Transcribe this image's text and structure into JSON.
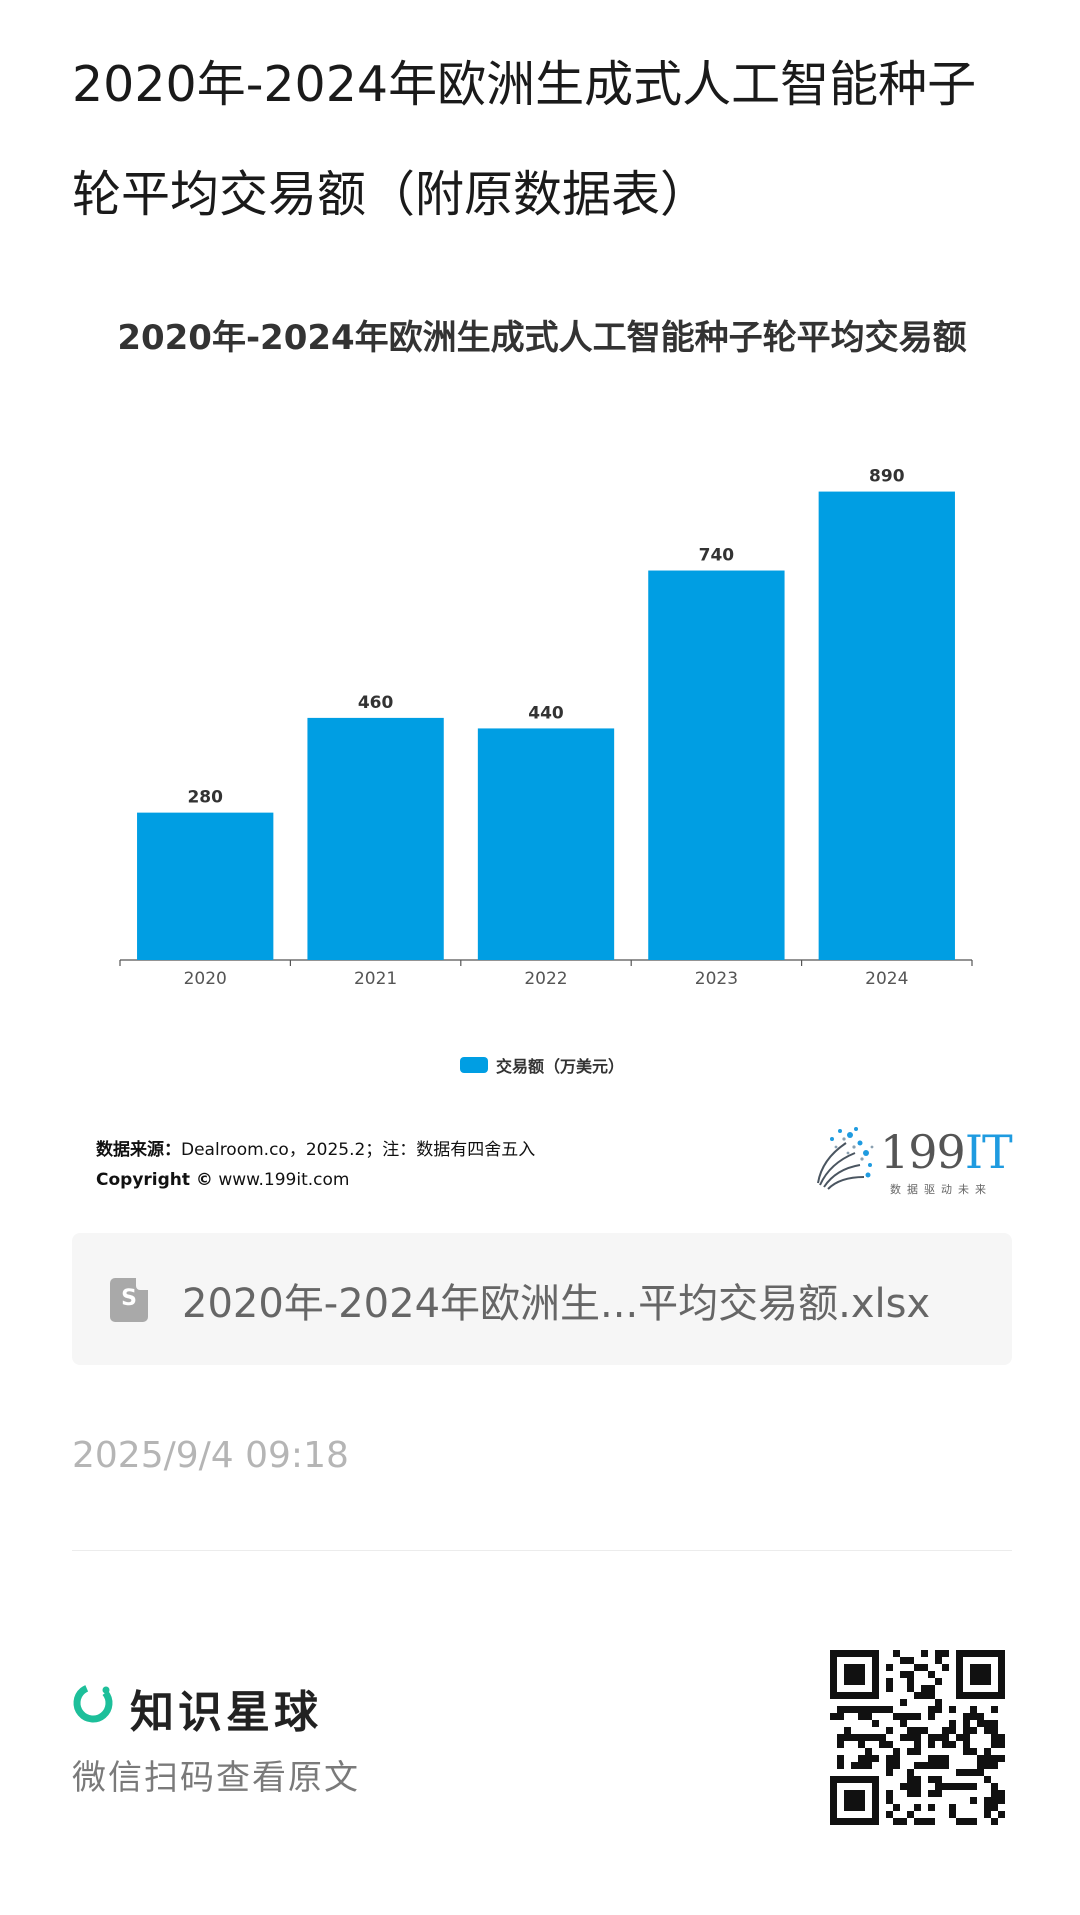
{
  "page": {
    "title": "2020年-2024年欧洲生成式人工智能种子轮平均交易额（附原数据表）"
  },
  "chart_data": {
    "type": "bar",
    "title": "2020年-2024年欧洲生成式人工智能种子轮平均交易额",
    "categories": [
      "2020",
      "2021",
      "2022",
      "2023",
      "2024"
    ],
    "series": [
      {
        "name": "交易额（万美元）",
        "values": [
          280,
          460,
          440,
          740,
          890
        ],
        "color": "#009ee3"
      }
    ],
    "ylim": [
      0,
      950
    ],
    "grid": false,
    "legend": "bottom-center",
    "data_labels": true
  },
  "source": {
    "label": "数据来源：",
    "text": "Dealroom.co，2025.2；注：数据有四舍五入",
    "copyright_label": "Copyright ©",
    "copyright_url": "www.199it.com"
  },
  "brand": {
    "name_digits": "199",
    "name_letters": "IT",
    "tagline": "数据驱动未来",
    "accent_color": "#1f9be0"
  },
  "file": {
    "icon_letter": "S",
    "name": "2020年-2024年欧洲生...平均交易额.xlsx"
  },
  "meta": {
    "timestamp": "2025/9/4 09:18"
  },
  "footer": {
    "app_name": "知识星球",
    "scan_hint": "微信扫码查看原文",
    "logo_color": "#1dbf9a"
  }
}
